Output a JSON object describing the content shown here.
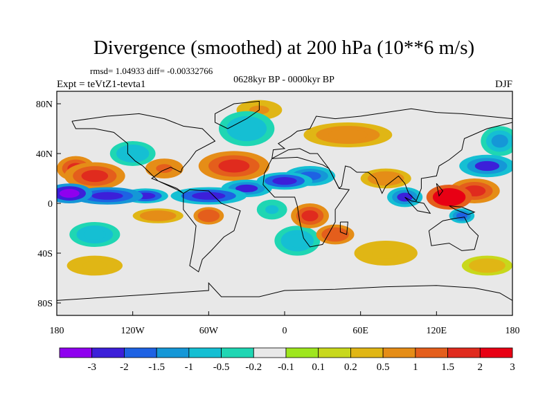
{
  "chart_data": {
    "type": "heatmap",
    "title": "Divergence (smoothed) at 200 hPa (10**6 m/s)",
    "stats": "rmsd= 1.04933 diff= -0.00332766",
    "subtitle_left": "Expt = teVtZ1-tevta1",
    "subtitle_center": "0628kyr BP - 0000kyr BP",
    "subtitle_right": "DJF",
    "xlim": [
      -180,
      180
    ],
    "ylim": [
      -90,
      90
    ],
    "x_ticks": [
      {
        "value": -180,
        "label": "180"
      },
      {
        "value": -120,
        "label": "120W"
      },
      {
        "value": -60,
        "label": "60W"
      },
      {
        "value": 0,
        "label": "0"
      },
      {
        "value": 60,
        "label": "60E"
      },
      {
        "value": 120,
        "label": "120E"
      },
      {
        "value": 180,
        "label": "180"
      }
    ],
    "y_ticks": [
      {
        "value": 80,
        "label": "80N"
      },
      {
        "value": 40,
        "label": "40N"
      },
      {
        "value": 0,
        "label": "0"
      },
      {
        "value": -40,
        "label": "40S"
      },
      {
        "value": -80,
        "label": "80S"
      }
    ],
    "colorbar": {
      "colors": [
        "#8f00ef",
        "#3c1fd9",
        "#1e62e3",
        "#1597d7",
        "#15bfd3",
        "#1fd6b3",
        "#e8e8e8",
        "#9ee61e",
        "#c8d81c",
        "#e0b615",
        "#e58d17",
        "#e45e1c",
        "#e02b1e",
        "#e80014"
      ],
      "boundaries": [
        "-3",
        "-2",
        "-1.5",
        "-1",
        "-0.5",
        "-0.2",
        "-0.1",
        "0.1",
        "0.2",
        "0.5",
        "1",
        "1.5",
        "2",
        "3"
      ]
    },
    "field_blobs": [
      {
        "lon": -170,
        "lat": 8,
        "rlon": 18,
        "rlat": 8,
        "value": -3.0
      },
      {
        "lon": -140,
        "lat": 6,
        "rlon": 28,
        "rlat": 7,
        "value": -2.5
      },
      {
        "lon": -110,
        "lat": 6,
        "rlon": 18,
        "rlat": 6,
        "value": -2.2
      },
      {
        "lon": -60,
        "lat": 6,
        "rlon": 30,
        "rlat": 7,
        "value": -2.2
      },
      {
        "lon": -30,
        "lat": 12,
        "rlon": 20,
        "rlat": 7,
        "value": -2.0
      },
      {
        "lon": 0,
        "lat": 18,
        "rlon": 22,
        "rlat": 7,
        "value": -2.2
      },
      {
        "lon": 20,
        "lat": 22,
        "rlon": 20,
        "rlat": 8,
        "value": -1.5
      },
      {
        "lon": 95,
        "lat": 5,
        "rlon": 14,
        "rlat": 8,
        "value": -2.0
      },
      {
        "lon": 160,
        "lat": 30,
        "rlon": 22,
        "rlat": 9,
        "value": -2.0
      },
      {
        "lon": 170,
        "lat": 50,
        "rlon": 15,
        "rlat": 12,
        "value": -1.0
      },
      {
        "lon": 140,
        "lat": -10,
        "rlon": 10,
        "rlat": 6,
        "value": -1.5
      },
      {
        "lon": -120,
        "lat": 40,
        "rlon": 18,
        "rlat": 10,
        "value": -0.8
      },
      {
        "lon": -30,
        "lat": 60,
        "rlon": 22,
        "rlat": 14,
        "value": -0.8
      },
      {
        "lon": 10,
        "lat": -30,
        "rlon": 18,
        "rlat": 12,
        "value": -0.9
      },
      {
        "lon": -10,
        "lat": -5,
        "rlon": 12,
        "rlat": 8,
        "value": -0.6
      },
      {
        "lon": -150,
        "lat": -25,
        "rlon": 20,
        "rlat": 10,
        "value": -0.7
      },
      {
        "lon": -165,
        "lat": 28,
        "rlon": 15,
        "rlat": 10,
        "value": 1.8
      },
      {
        "lon": -150,
        "lat": 22,
        "rlon": 24,
        "rlat": 11,
        "value": 1.8
      },
      {
        "lon": -95,
        "lat": 28,
        "rlon": 15,
        "rlat": 8,
        "value": 1.3
      },
      {
        "lon": -40,
        "lat": 30,
        "rlon": 28,
        "rlat": 12,
        "value": 1.8
      },
      {
        "lon": 50,
        "lat": 55,
        "rlon": 35,
        "rlat": 10,
        "value": 1.0
      },
      {
        "lon": -60,
        "lat": -10,
        "rlon": 12,
        "rlat": 7,
        "value": 1.5
      },
      {
        "lon": 20,
        "lat": -10,
        "rlon": 15,
        "rlat": 10,
        "value": 2.0
      },
      {
        "lon": 40,
        "lat": -25,
        "rlon": 15,
        "rlat": 8,
        "value": 1.5
      },
      {
        "lon": 130,
        "lat": 5,
        "rlon": 18,
        "rlat": 10,
        "value": 3.0
      },
      {
        "lon": 150,
        "lat": 10,
        "rlon": 20,
        "rlat": 10,
        "value": 2.0
      },
      {
        "lon": 80,
        "lat": 20,
        "rlon": 20,
        "rlat": 8,
        "value": 1.0
      },
      {
        "lon": -100,
        "lat": -10,
        "rlon": 20,
        "rlat": 6,
        "value": 0.8
      },
      {
        "lon": -150,
        "lat": -50,
        "rlon": 22,
        "rlat": 8,
        "value": 0.5
      },
      {
        "lon": 160,
        "lat": -50,
        "rlon": 20,
        "rlat": 8,
        "value": 0.4
      },
      {
        "lon": -20,
        "lat": 75,
        "rlon": 18,
        "rlat": 8,
        "value": 0.6
      },
      {
        "lon": 80,
        "lat": -40,
        "rlon": 25,
        "rlat": 10,
        "value": 0.5
      }
    ]
  }
}
